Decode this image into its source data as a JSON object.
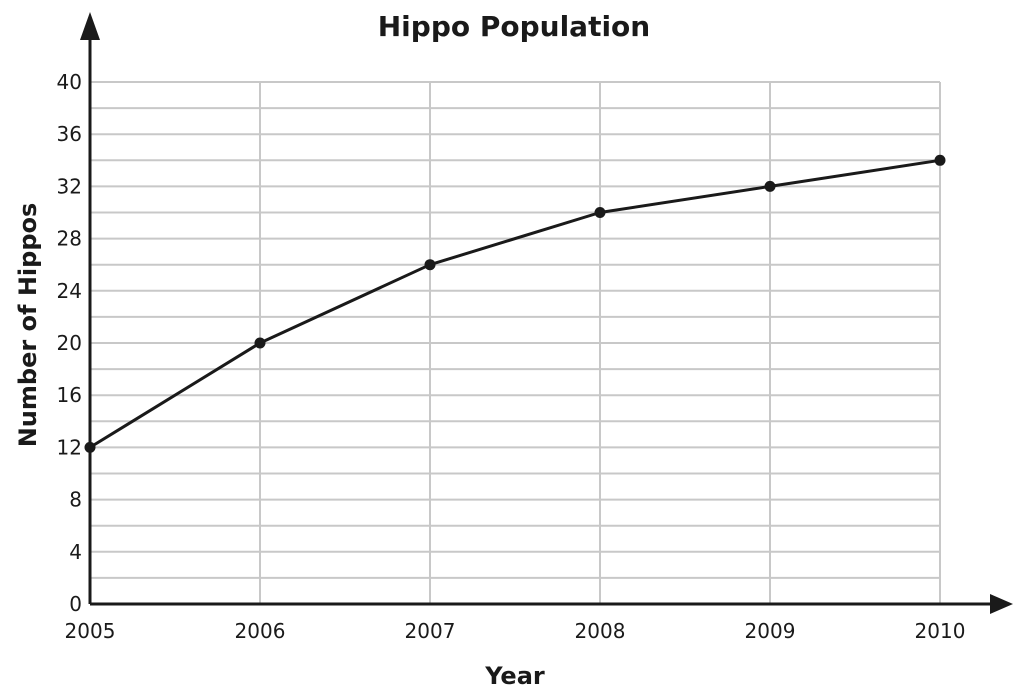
{
  "chart_data": {
    "type": "line",
    "title": "Hippo Population",
    "xlabel": "Year",
    "ylabel": "Number of  Hippos",
    "categories": [
      "2005",
      "2006",
      "2007",
      "2008",
      "2009",
      "2010"
    ],
    "series": [
      {
        "values": [
          12,
          20,
          26,
          30,
          32,
          34
        ]
      }
    ],
    "yticks": [
      "0",
      "4",
      "8",
      "12",
      "16",
      "20",
      "24",
      "28",
      "32",
      "36",
      "40"
    ],
    "ylim": [
      0,
      40
    ],
    "minor_step": 2,
    "grid": true,
    "legend": false,
    "colors": {
      "grid": "#c8c8c8",
      "axis": "#1a1a1a",
      "line": "#1a1a1a",
      "point": "#1a1a1a"
    }
  }
}
